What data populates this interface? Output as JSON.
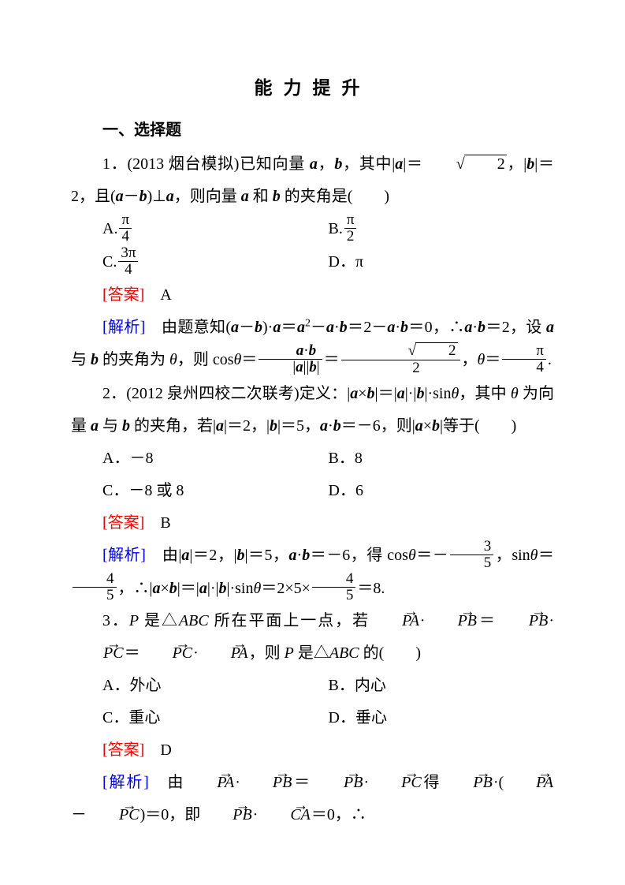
{
  "colors": {
    "text": "#000000",
    "answer": "#ff0000",
    "analysis": "#0000ff",
    "background": "#ffffff"
  },
  "typography": {
    "body_fontsize_pt": 15,
    "title_fontsize_pt": 17,
    "line_height": 2.05,
    "font_family": "SimSun / Songti"
  },
  "title": "能力提升",
  "section1_heading": "一、选择题",
  "q1": {
    "stem_pre": "1．(2013 烟台模拟)已知向量 ",
    "stem_mid1": "，",
    "stem_mid2": "，其中|",
    "stem_mid3": "|＝",
    "stem_mid4": "，|",
    "stem_mid5": "|＝2，且(",
    "stem_mid6": "－",
    "stem_mid7": ")⊥",
    "stem_mid8": "，则向量 ",
    "stem_mid9": " 和 ",
    "stem_tail": " 的夹角是(　　)",
    "optA_pre": "A.",
    "optB_pre": "B.",
    "optC_pre": "C.",
    "optD": "D．π",
    "pi": "π",
    "four": "4",
    "two": "2",
    "three_pi": "3π",
    "answer_label": "[答案]",
    "answer": "A",
    "analysis_label": "[解析]",
    "expl_a": "由题意知(",
    "expl_b": "－",
    "expl_c": ")·",
    "expl_d": "＝",
    "expl_e": "－",
    "expl_f": "·",
    "expl_g": "＝2－",
    "expl_h": "·",
    "expl_i": "＝0，∴",
    "expl_j": "·",
    "expl_k": "＝2，设 ",
    "expl_l": " 与 ",
    "expl_m": " 的夹角为 ",
    "expl_n": "，则 cos",
    "expl_o": "＝",
    "expl_p": "＝",
    "expl_q": "，",
    "expl_r": "＝",
    "expl_s": "."
  },
  "q2": {
    "stem_a": "2．(2012 泉州四校二次联考)定义：|",
    "stem_b": "×",
    "stem_c": "|＝|",
    "stem_d": "|·|",
    "stem_e": "|·sin",
    "stem_f": "，其中 ",
    "stem_g": " 为向量 ",
    "stem_h": " 与 ",
    "stem_i": " 的夹角，若|",
    "stem_j": "|＝2，|",
    "stem_k": "|＝5，",
    "stem_l": "·",
    "stem_m": "＝－6，则|",
    "stem_n": "×",
    "stem_o": "|等于(　　)",
    "optA": "A．－8",
    "optB": "B．8",
    "optC": "C．－8 或 8",
    "optD": "D．6",
    "answer_label": "[答案]",
    "answer": "B",
    "analysis_label": "[解析]",
    "expl_a": "由|",
    "expl_b": "|＝2，|",
    "expl_c": "|＝5，",
    "expl_d": "·",
    "expl_e": "＝－6，得 cos",
    "expl_f": "＝－",
    "expl_g": "，sin",
    "expl_h": "＝",
    "expl_i": "，∴|",
    "expl_j": "×",
    "expl_k": "|＝|",
    "expl_l": "|·|",
    "expl_m": "|·sin",
    "expl_n": "＝2×5×",
    "expl_o": "＝8.",
    "three": "3",
    "four": "4",
    "five": "5"
  },
  "q3": {
    "stem_a": "3．",
    "stem_b": " 是△",
    "stem_c": " 所在平面上一点，若",
    "stem_d": "·",
    "stem_e": "＝",
    "stem_f": "·",
    "stem_g": "＝",
    "stem_h": "·",
    "stem_i": "，则 ",
    "stem_j": " 是△",
    "stem_k": " 的(　　)",
    "optA": "A．外心",
    "optB": "B．内心",
    "optC": "C．重心",
    "optD": "D．垂心",
    "answer_label": "[答案]",
    "answer": "D",
    "analysis_label": "[解析]",
    "expl_a": "由",
    "expl_b": "·",
    "expl_c": "＝",
    "expl_d": "·",
    "expl_e": "得",
    "expl_f": "·(",
    "expl_g": "－",
    "expl_h": ")＝0，即",
    "expl_i": "·",
    "expl_j": "＝0，∴"
  },
  "sym": {
    "a": "a",
    "b": "b",
    "theta": "θ",
    "P": "P",
    "ABC": "ABC",
    "PA": "PA",
    "PB": "PB",
    "PC": "PC",
    "CA": "CA",
    "two": "2",
    "sqrt2": "2"
  }
}
